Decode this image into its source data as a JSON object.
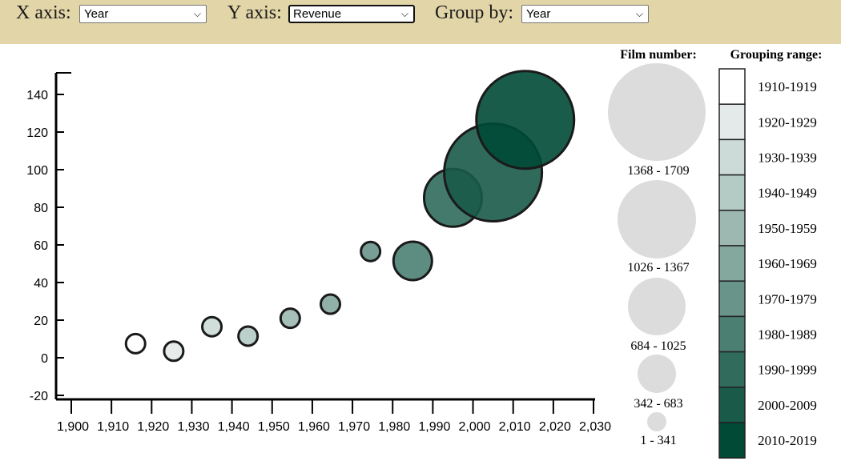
{
  "controls": {
    "x_axis_label": "X axis:",
    "x_axis_value": "Year",
    "y_axis_label": "Y axis:",
    "y_axis_value": "Revenue",
    "group_by_label": "Group by:",
    "group_by_value": "Year",
    "chevron_icon": "chevron-down-icon"
  },
  "chart_data": {
    "type": "scatter",
    "title": "",
    "xlabel": "",
    "ylabel": "",
    "xlim": [
      1900,
      2030
    ],
    "ylim": [
      -20,
      150
    ],
    "x_ticks": [
      1900,
      1910,
      1920,
      1930,
      1940,
      1950,
      1960,
      1970,
      1980,
      1990,
      2000,
      2010,
      2020,
      2030
    ],
    "y_ticks": [
      -20,
      0,
      20,
      40,
      60,
      80,
      100,
      120,
      140
    ],
    "points": [
      {
        "x": 1916,
        "y": 7.5,
        "film_number_range": "1 - 341",
        "group": "1910-1919"
      },
      {
        "x": 1925.5,
        "y": 3.5,
        "film_number_range": "1 - 341",
        "group": "1920-1929"
      },
      {
        "x": 1935,
        "y": 16.5,
        "film_number_range": "1 - 341",
        "group": "1930-1939"
      },
      {
        "x": 1944,
        "y": 11.5,
        "film_number_range": "1 - 341",
        "group": "1940-1949"
      },
      {
        "x": 1954.5,
        "y": 21,
        "film_number_range": "1 - 341",
        "group": "1950-1959"
      },
      {
        "x": 1964.5,
        "y": 28.5,
        "film_number_range": "1 - 341",
        "group": "1960-1969"
      },
      {
        "x": 1974.5,
        "y": 56.5,
        "film_number_range": "1 - 341",
        "group": "1970-1979"
      },
      {
        "x": 1985,
        "y": 51.5,
        "film_number_range": "342 - 683",
        "group": "1980-1989"
      },
      {
        "x": 1995,
        "y": 85,
        "film_number_range": "684 - 1025",
        "group": "1990-1999"
      },
      {
        "x": 2005,
        "y": 98.5,
        "film_number_range": "1368 - 1709",
        "group": "2000-2009"
      },
      {
        "x": 2013,
        "y": 126.5,
        "film_number_range": "1368 - 1709",
        "group": "2010-2019"
      }
    ],
    "size_legend": {
      "title": "Film number:",
      "entries": [
        "1368 - 1709",
        "1026 - 1367",
        "684 - 1025",
        "342 - 683",
        "1 - 341"
      ]
    },
    "color_legend": {
      "title": "Grouping range:",
      "entries": [
        {
          "label": "1910-1919",
          "color": "#ffffff"
        },
        {
          "label": "1920-1929",
          "color": "#e4eae9"
        },
        {
          "label": "1930-1939",
          "color": "#ccdbd7"
        },
        {
          "label": "1940-1949",
          "color": "#b4cac5"
        },
        {
          "label": "1950-1959",
          "color": "#9cb8b1"
        },
        {
          "label": "1960-1969",
          "color": "#84a79e"
        },
        {
          "label": "1970-1979",
          "color": "#69948a"
        },
        {
          "label": "1980-1989",
          "color": "#4b7f72"
        },
        {
          "label": "1990-1999",
          "color": "#306b5c"
        },
        {
          "label": "2000-2009",
          "color": "#1a5a48"
        },
        {
          "label": "2010-2019",
          "color": "#004a36"
        }
      ]
    },
    "legend_placement": "right",
    "grid": false
  }
}
